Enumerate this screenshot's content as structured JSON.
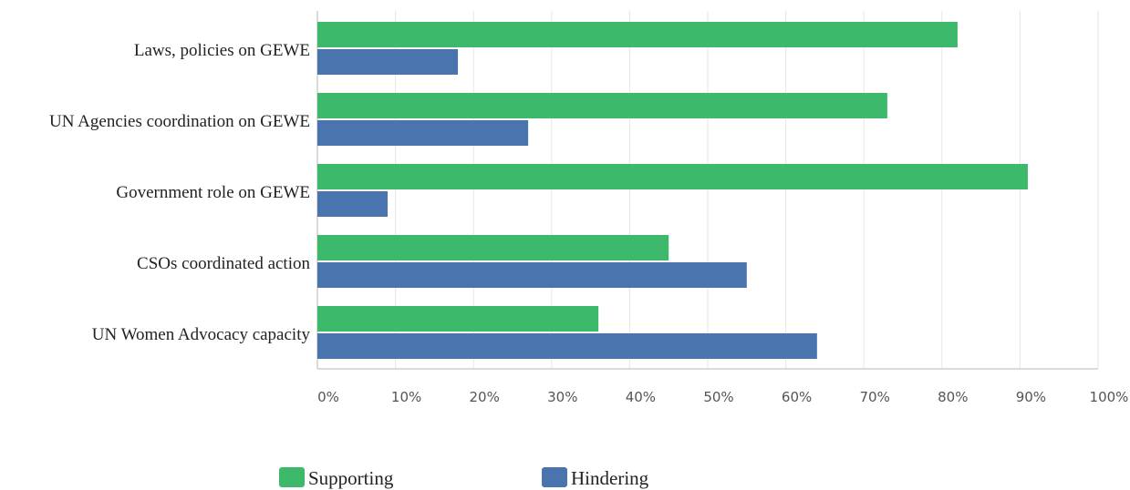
{
  "colors": {
    "supporting": "#3cb96a",
    "hindering": "#4a74ad"
  },
  "chart_data": {
    "type": "bar",
    "orientation": "horizontal",
    "title": "",
    "xlabel": "",
    "ylabel": "",
    "xlim": [
      0,
      100
    ],
    "x_ticks": [
      "0%",
      "10%",
      "20%",
      "30%",
      "40%",
      "50%",
      "60%",
      "70%",
      "80%",
      "90%",
      "100%"
    ],
    "categories": [
      "Laws, policies on GEWE",
      "UN Agencies coordination on GEWE",
      "Government role on GEWE",
      "CSOs coordinated action",
      "UN Women Advocacy capacity"
    ],
    "series": [
      {
        "name": "Supporting",
        "values": [
          82,
          73,
          91,
          45,
          36
        ]
      },
      {
        "name": "Hindering",
        "values": [
          18,
          27,
          9,
          55,
          64
        ]
      }
    ],
    "grid": true,
    "legend": "bottom"
  }
}
